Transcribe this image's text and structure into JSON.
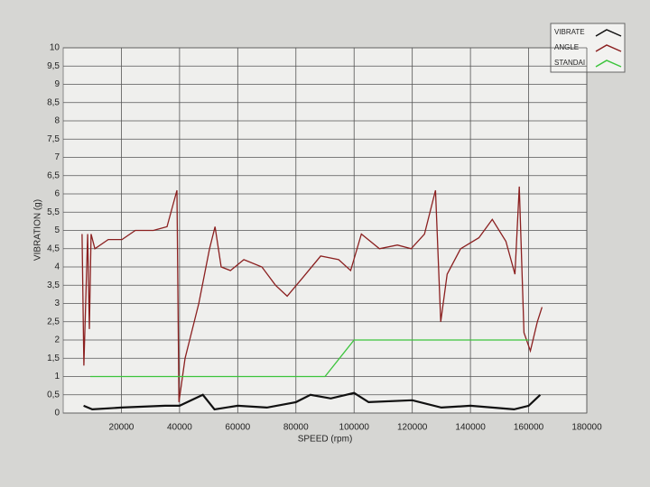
{
  "chart_data": {
    "type": "line",
    "x_label": "SPEED (rpm)",
    "y_label": "VIBRATION (g)",
    "xlim": [
      0,
      180000
    ],
    "xticks": [
      20000,
      40000,
      60000,
      80000,
      100000,
      120000,
      140000,
      160000,
      180000
    ],
    "ylim": [
      0,
      10
    ],
    "yticks": [
      0,
      {
        "value": 0.5,
        "label": "0,5"
      },
      1,
      {
        "value": 1.5,
        "label": "1,5"
      },
      2,
      {
        "value": 2.5,
        "label": "2,5"
      },
      3,
      {
        "value": 3.5,
        "label": "3,5"
      },
      4,
      {
        "value": 4.5,
        "label": "4,5"
      },
      5,
      {
        "value": 5.5,
        "label": "5,5"
      },
      6,
      {
        "value": 6.5,
        "label": "6,5"
      },
      7,
      {
        "value": 7.5,
        "label": "7,5"
      },
      8,
      {
        "value": 8.5,
        "label": "8,5"
      },
      9,
      {
        "value": 9.5,
        "label": "9,5"
      },
      10
    ],
    "grid": true,
    "legend": "top-right",
    "series": [
      {
        "name": "VIBRATE",
        "color": "#111111",
        "x": [
          7000,
          10000,
          20000,
          35000,
          40000,
          48000,
          52000,
          60000,
          70000,
          80000,
          85000,
          92000,
          100000,
          105000,
          120000,
          130000,
          140000,
          155000,
          160000,
          164000
        ],
        "values": [
          0.2,
          0.1,
          0.15,
          0.2,
          0.2,
          0.5,
          0.1,
          0.2,
          0.15,
          0.3,
          0.5,
          0.4,
          0.55,
          0.3,
          0.35,
          0.15,
          0.2,
          0.1,
          0.2,
          0.5
        ]
      },
      {
        "name": "ANGLE",
        "color": "#8b2020",
        "x": [
          6500,
          7100,
          8400,
          9000,
          9600,
          10900,
          15500,
          20200,
          24800,
          31000,
          35700,
          39100,
          39800,
          41900,
          46600,
          50300,
          52200,
          54300,
          57500,
          62100,
          68300,
          73000,
          77000,
          82300,
          88500,
          94700,
          98800,
          102500,
          108700,
          114900,
          119600,
          124200,
          128000,
          129800,
          132000,
          136600,
          142900,
          147500,
          152200,
          155300,
          156800,
          158400,
          160600,
          163000,
          164600
        ],
        "values": [
          4.9,
          1.3,
          4.9,
          2.3,
          4.9,
          4.5,
          4.75,
          4.75,
          5.0,
          5.0,
          5.1,
          6.1,
          0.3,
          1.5,
          3.0,
          4.5,
          5.1,
          4.0,
          3.9,
          4.2,
          4.0,
          3.5,
          3.2,
          3.7,
          4.3,
          4.2,
          3.9,
          4.9,
          4.5,
          4.6,
          4.5,
          4.9,
          6.1,
          2.5,
          3.8,
          4.5,
          4.8,
          5.3,
          4.7,
          3.8,
          6.2,
          2.2,
          1.7,
          2.5,
          2.9
        ]
      },
      {
        "name": "STANDAI",
        "color": "#3cc43c",
        "x": [
          9300,
          90000,
          100000,
          160000
        ],
        "values": [
          1,
          1,
          2,
          2
        ]
      }
    ]
  }
}
